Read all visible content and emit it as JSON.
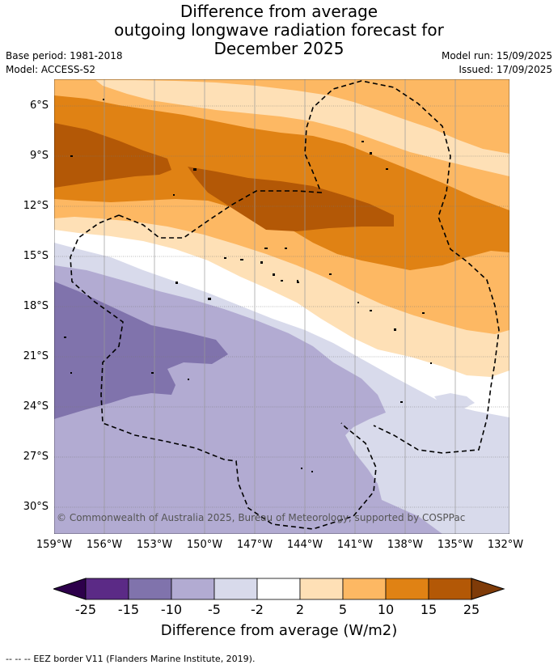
{
  "title": {
    "line1": "Difference from average",
    "line2": "outgoing longwave radiation forecast for",
    "line3": "December 2025"
  },
  "meta": {
    "base_period": "Base period: 1981-2018",
    "model": "Model: ACCESS-S2",
    "model_run": "Model run: 15/09/2025",
    "issued": "Issued: 17/09/2025"
  },
  "axes": {
    "lat_labels": [
      "6°S",
      "9°S",
      "12°S",
      "15°S",
      "18°S",
      "21°S",
      "24°S",
      "27°S",
      "30°S"
    ],
    "lon_labels": [
      "159°W",
      "156°W",
      "153°W",
      "150°W",
      "147°W",
      "144°W",
      "141°W",
      "138°W",
      "135°W",
      "132°W"
    ]
  },
  "credit": "© Commonwealth of Australia 2025, Bureau of Meteorology, supported by COSPPac",
  "colorbar": {
    "ticks": [
      "-25",
      "-15",
      "-10",
      "-5",
      "-2",
      "2",
      "5",
      "10",
      "15",
      "25"
    ],
    "colors": [
      "#5b2a86",
      "#8073ac",
      "#b2abd2",
      "#d8daeb",
      "#ffffff",
      "#fee0b6",
      "#fdb863",
      "#e08214",
      "#b35806"
    ],
    "under_color": "#2d004b",
    "over_color": "#7f3b08",
    "label": "Difference from average (W/m2)"
  },
  "legend": {
    "line_symbol": "--  --  --",
    "eez_label": "EEZ border V11 (Flanders Marine Institute, 2019)."
  }
}
